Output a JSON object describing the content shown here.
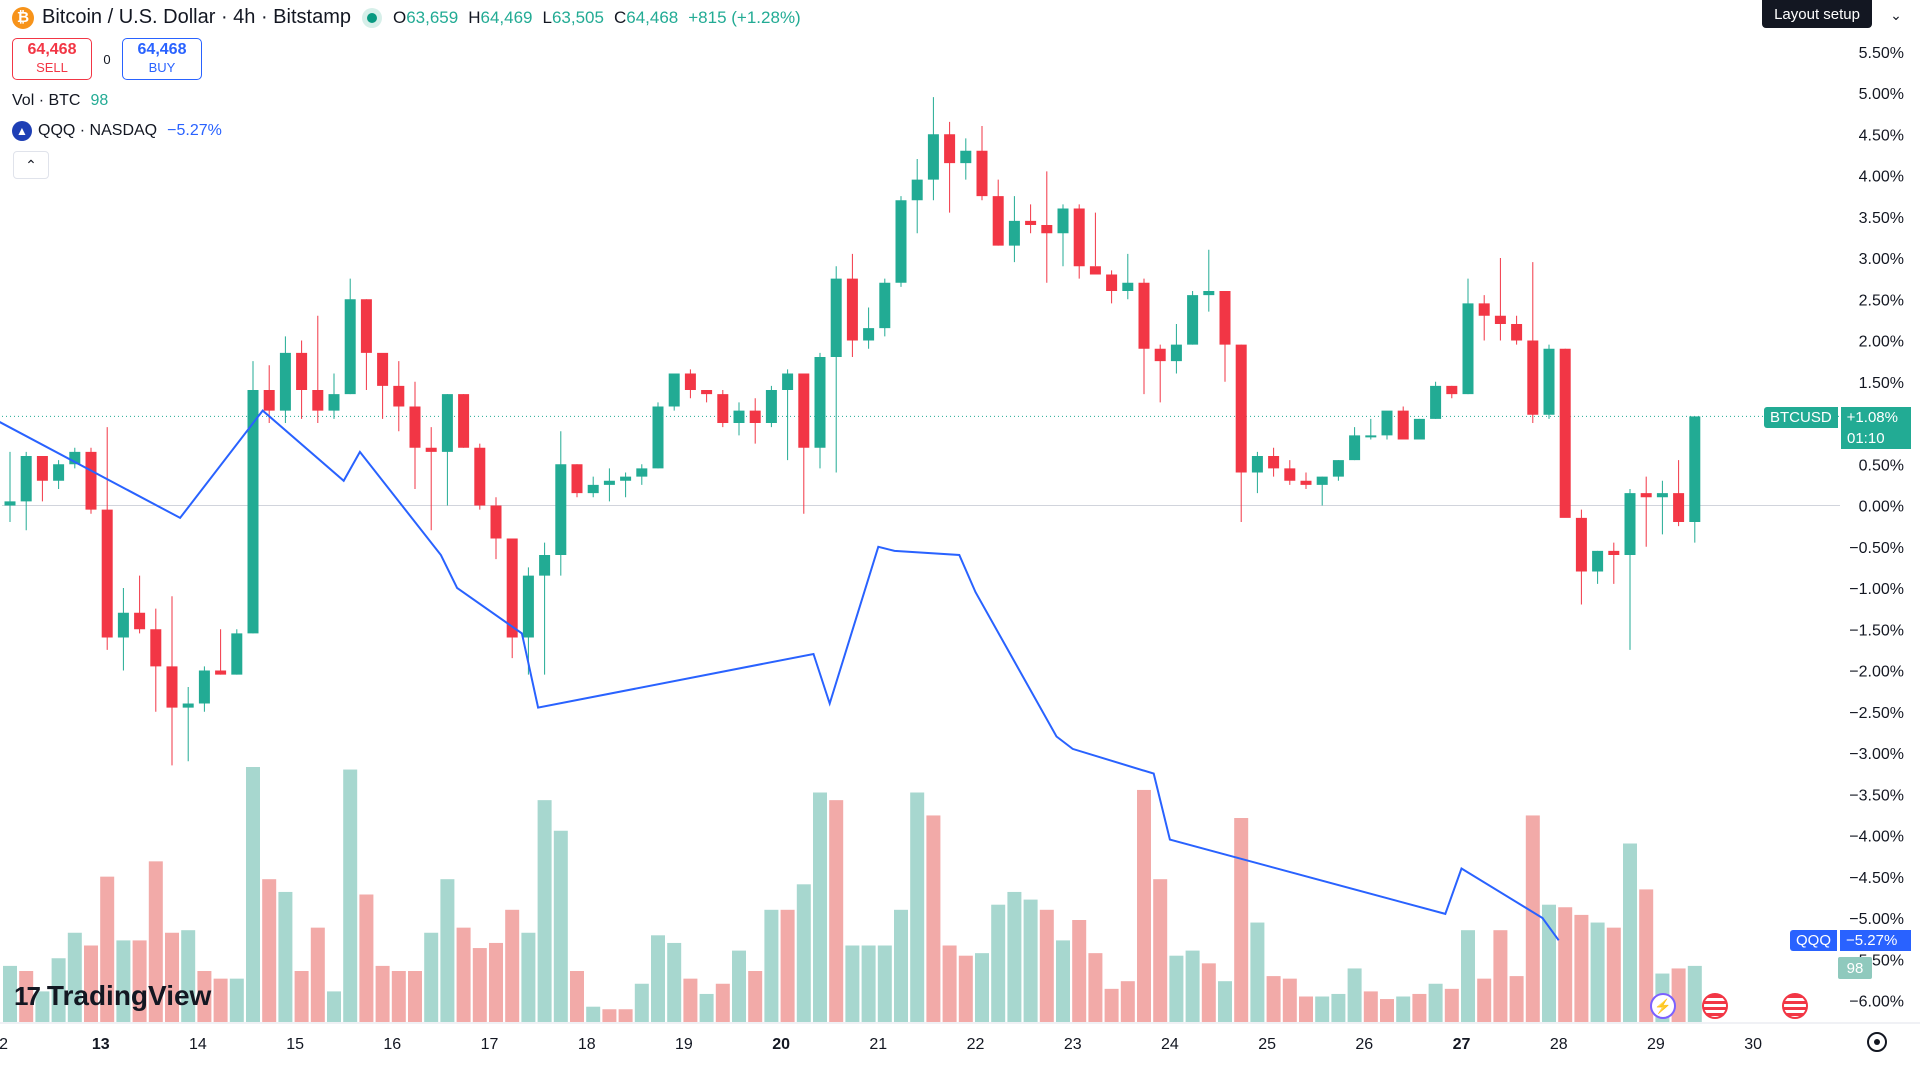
{
  "header": {
    "title": "Bitcoin / U.S. Dollar · 4h · Bitstamp",
    "ohlc": {
      "o_label": "O",
      "o": "63,659",
      "h_label": "H",
      "h": "64,469",
      "l_label": "L",
      "l": "63,505",
      "c_label": "C",
      "c": "64,468",
      "change": "+815 (+1.28%)"
    }
  },
  "trade": {
    "sell_price": "64,468",
    "sell_label": "SELL",
    "spread": "0",
    "buy_price": "64,468",
    "buy_label": "BUY"
  },
  "legend": {
    "vol_label": "Vol · BTC",
    "vol_value": "98",
    "compare_label": "QQQ · NASDAQ",
    "compare_value": "−5.27%"
  },
  "toolbar": {
    "layout_label": "Layout setup"
  },
  "tags": {
    "btc_label": "BTCUSD",
    "btc_value": "+1.08%",
    "btc_timer": "01:10",
    "qqq_label": "QQQ",
    "qqq_value": "−5.27%",
    "vol_value": "98"
  },
  "branding": {
    "name": "TradingView"
  },
  "colors": {
    "up": "#22ab94",
    "down": "#f23645",
    "compare": "#2962ff",
    "vol_up": "#a7d7cf",
    "vol_down": "#f2aaa8"
  },
  "chart_data": {
    "type": "candlestick",
    "timeframe": "4h",
    "y_axis_labels": [
      "5.50%",
      "5.00%",
      "4.50%",
      "4.00%",
      "3.50%",
      "3.00%",
      "2.50%",
      "2.00%",
      "1.50%",
      "1.00%",
      "0.50%",
      "0.00%",
      "−0.50%",
      "−1.00%",
      "−1.50%",
      "−2.00%",
      "−2.50%",
      "−3.00%",
      "−3.50%",
      "−4.00%",
      "−4.50%",
      "−5.00%",
      "−5.50%",
      "−6.00%"
    ],
    "y_range": [
      -6.3,
      5.8
    ],
    "x_labels": [
      {
        "label": "2",
        "bold": false,
        "index": -0.4
      },
      {
        "label": "13",
        "bold": true,
        "index": 5.6
      },
      {
        "label": "14",
        "bold": false,
        "index": 11.6
      },
      {
        "label": "15",
        "bold": false,
        "index": 17.6
      },
      {
        "label": "16",
        "bold": false,
        "index": 23.6
      },
      {
        "label": "17",
        "bold": false,
        "index": 29.6
      },
      {
        "label": "18",
        "bold": false,
        "index": 35.6
      },
      {
        "label": "19",
        "bold": false,
        "index": 41.6
      },
      {
        "label": "20",
        "bold": true,
        "index": 47.6
      },
      {
        "label": "21",
        "bold": false,
        "index": 53.6
      },
      {
        "label": "22",
        "bold": false,
        "index": 59.6
      },
      {
        "label": "23",
        "bold": false,
        "index": 65.6
      },
      {
        "label": "24",
        "bold": false,
        "index": 71.6
      },
      {
        "label": "25",
        "bold": false,
        "index": 77.6
      },
      {
        "label": "26",
        "bold": false,
        "index": 83.6
      },
      {
        "label": "27",
        "bold": true,
        "index": 89.6
      },
      {
        "label": "28",
        "bold": false,
        "index": 95.6
      },
      {
        "label": "29",
        "bold": false,
        "index": 101.6
      },
      {
        "label": "30",
        "bold": false,
        "index": 107.6
      }
    ],
    "btc_candles": [
      [
        0.0,
        0.65,
        -0.2,
        0.05
      ],
      [
        0.05,
        0.65,
        -0.3,
        0.6
      ],
      [
        0.6,
        0.6,
        0.05,
        0.3
      ],
      [
        0.3,
        0.55,
        0.2,
        0.5
      ],
      [
        0.5,
        0.7,
        0.45,
        0.65
      ],
      [
        0.65,
        0.7,
        -0.1,
        -0.05
      ],
      [
        -0.05,
        0.95,
        -1.75,
        -1.6
      ],
      [
        -1.6,
        -1.0,
        -2.0,
        -1.3
      ],
      [
        -1.3,
        -0.85,
        -1.55,
        -1.5
      ],
      [
        -1.5,
        -1.25,
        -2.5,
        -1.95
      ],
      [
        -1.95,
        -1.1,
        -3.15,
        -2.45
      ],
      [
        -2.45,
        -2.2,
        -3.1,
        -2.4
      ],
      [
        -2.4,
        -1.95,
        -2.5,
        -2.0
      ],
      [
        -2.0,
        -1.5,
        -2.05,
        -2.05
      ],
      [
        -2.05,
        -1.5,
        -2.05,
        -1.55
      ],
      [
        -1.55,
        1.75,
        -1.55,
        1.4
      ],
      [
        1.4,
        1.7,
        1.0,
        1.15
      ],
      [
        1.15,
        2.05,
        1.0,
        1.85
      ],
      [
        1.85,
        2.0,
        1.05,
        1.4
      ],
      [
        1.4,
        2.3,
        1.0,
        1.15
      ],
      [
        1.15,
        1.6,
        1.05,
        1.35
      ],
      [
        1.35,
        2.75,
        1.35,
        2.5
      ],
      [
        2.5,
        2.5,
        1.4,
        1.85
      ],
      [
        1.85,
        1.75,
        1.05,
        1.45
      ],
      [
        1.45,
        1.75,
        0.9,
        1.2
      ],
      [
        1.2,
        1.5,
        0.2,
        0.7
      ],
      [
        0.7,
        0.95,
        -0.3,
        0.65
      ],
      [
        0.65,
        1.35,
        0.0,
        1.35
      ],
      [
        1.35,
        1.35,
        0.7,
        0.7
      ],
      [
        0.7,
        0.75,
        -0.05,
        0.0
      ],
      [
        0.0,
        0.1,
        -0.65,
        -0.4
      ],
      [
        -0.4,
        -0.4,
        -1.85,
        -1.6
      ],
      [
        -1.6,
        -0.75,
        -2.05,
        -0.85
      ],
      [
        -0.85,
        -0.45,
        -2.05,
        -0.6
      ],
      [
        -0.6,
        0.9,
        -0.85,
        0.5
      ],
      [
        0.5,
        0.5,
        0.1,
        0.15
      ],
      [
        0.15,
        0.35,
        0.1,
        0.25
      ],
      [
        0.25,
        0.45,
        0.05,
        0.3
      ],
      [
        0.3,
        0.4,
        0.1,
        0.35
      ],
      [
        0.35,
        0.5,
        0.25,
        0.45
      ],
      [
        0.45,
        1.25,
        0.45,
        1.2
      ],
      [
        1.2,
        1.6,
        1.15,
        1.6
      ],
      [
        1.6,
        1.65,
        1.3,
        1.4
      ],
      [
        1.4,
        1.4,
        1.25,
        1.35
      ],
      [
        1.35,
        1.4,
        0.95,
        1.0
      ],
      [
        1.0,
        1.25,
        0.85,
        1.15
      ],
      [
        1.15,
        1.3,
        0.75,
        1.0
      ],
      [
        1.0,
        1.45,
        0.95,
        1.4
      ],
      [
        1.4,
        1.65,
        0.55,
        1.6
      ],
      [
        1.6,
        1.6,
        -0.1,
        0.7
      ],
      [
        0.7,
        1.85,
        0.45,
        1.8
      ],
      [
        1.8,
        2.9,
        0.4,
        2.75
      ],
      [
        2.75,
        3.05,
        1.8,
        2.0
      ],
      [
        2.0,
        2.4,
        1.9,
        2.15
      ],
      [
        2.15,
        2.75,
        2.05,
        2.7
      ],
      [
        2.7,
        3.75,
        2.65,
        3.7
      ],
      [
        3.7,
        4.2,
        3.3,
        3.95
      ],
      [
        3.95,
        4.95,
        3.7,
        4.5
      ],
      [
        4.5,
        4.65,
        3.55,
        4.15
      ],
      [
        4.15,
        4.45,
        3.95,
        4.3
      ],
      [
        4.3,
        4.6,
        3.7,
        3.75
      ],
      [
        3.75,
        3.95,
        3.15,
        3.15
      ],
      [
        3.15,
        3.75,
        2.95,
        3.45
      ],
      [
        3.45,
        3.65,
        3.3,
        3.4
      ],
      [
        3.4,
        4.05,
        2.7,
        3.3
      ],
      [
        3.3,
        3.65,
        2.9,
        3.6
      ],
      [
        3.6,
        3.65,
        2.75,
        2.9
      ],
      [
        2.9,
        3.55,
        2.9,
        2.8
      ],
      [
        2.8,
        2.85,
        2.45,
        2.6
      ],
      [
        2.6,
        3.05,
        2.5,
        2.7
      ],
      [
        2.7,
        2.75,
        1.35,
        1.9
      ],
      [
        1.9,
        1.95,
        1.25,
        1.75
      ],
      [
        1.75,
        2.2,
        1.6,
        1.95
      ],
      [
        1.95,
        2.6,
        1.95,
        2.55
      ],
      [
        2.55,
        3.1,
        2.35,
        2.6
      ],
      [
        2.6,
        2.6,
        1.5,
        1.95
      ],
      [
        1.95,
        1.95,
        -0.2,
        0.4
      ],
      [
        0.4,
        0.65,
        0.15,
        0.6
      ],
      [
        0.6,
        0.7,
        0.35,
        0.45
      ],
      [
        0.45,
        0.55,
        0.25,
        0.3
      ],
      [
        0.3,
        0.4,
        0.2,
        0.25
      ],
      [
        0.25,
        0.35,
        0.0,
        0.35
      ],
      [
        0.35,
        0.55,
        0.3,
        0.55
      ],
      [
        0.55,
        0.95,
        0.55,
        0.85
      ],
      [
        0.85,
        1.05,
        0.8,
        0.85
      ],
      [
        0.85,
        1.1,
        0.8,
        1.15
      ],
      [
        1.15,
        1.2,
        0.8,
        0.8
      ],
      [
        0.8,
        1.05,
        0.8,
        1.05
      ],
      [
        1.05,
        1.5,
        1.05,
        1.45
      ],
      [
        1.45,
        1.45,
        1.3,
        1.35
      ],
      [
        1.35,
        2.75,
        1.35,
        2.45
      ],
      [
        2.45,
        2.55,
        2.0,
        2.3
      ],
      [
        2.3,
        3.0,
        2.0,
        2.2
      ],
      [
        2.2,
        2.3,
        1.95,
        2.0
      ],
      [
        2.0,
        2.95,
        1.0,
        1.1
      ],
      [
        1.1,
        1.95,
        1.05,
        1.9
      ],
      [
        1.9,
        1.9,
        -0.1,
        -0.15
      ],
      [
        -0.15,
        -0.05,
        -1.2,
        -0.8
      ],
      [
        -0.8,
        -0.55,
        -0.95,
        -0.55
      ],
      [
        -0.55,
        -0.45,
        -0.95,
        -0.6
      ],
      [
        -0.6,
        0.2,
        -1.75,
        0.15
      ],
      [
        0.15,
        0.35,
        -0.5,
        0.1
      ],
      [
        0.1,
        0.3,
        -0.35,
        0.15
      ],
      [
        0.15,
        0.55,
        -0.25,
        -0.2
      ],
      [
        -0.2,
        1.08,
        -0.45,
        1.08
      ]
    ],
    "btc_volume": [
      [
        0.22,
        "up"
      ],
      [
        0.2,
        "down"
      ],
      [
        0.12,
        "up"
      ],
      [
        0.25,
        "up"
      ],
      [
        0.35,
        "up"
      ],
      [
        0.3,
        "down"
      ],
      [
        0.57,
        "down"
      ],
      [
        0.32,
        "up"
      ],
      [
        0.32,
        "down"
      ],
      [
        0.63,
        "down"
      ],
      [
        0.35,
        "down"
      ],
      [
        0.36,
        "up"
      ],
      [
        0.2,
        "down"
      ],
      [
        0.17,
        "down"
      ],
      [
        0.17,
        "up"
      ],
      [
        1.0,
        "up"
      ],
      [
        0.56,
        "down"
      ],
      [
        0.51,
        "up"
      ],
      [
        0.2,
        "down"
      ],
      [
        0.37,
        "down"
      ],
      [
        0.12,
        "up"
      ],
      [
        0.99,
        "up"
      ],
      [
        0.5,
        "down"
      ],
      [
        0.22,
        "down"
      ],
      [
        0.2,
        "down"
      ],
      [
        0.2,
        "down"
      ],
      [
        0.35,
        "up"
      ],
      [
        0.56,
        "up"
      ],
      [
        0.37,
        "down"
      ],
      [
        0.29,
        "down"
      ],
      [
        0.31,
        "down"
      ],
      [
        0.44,
        "down"
      ],
      [
        0.35,
        "up"
      ],
      [
        0.87,
        "up"
      ],
      [
        0.75,
        "up"
      ],
      [
        0.2,
        "down"
      ],
      [
        0.06,
        "up"
      ],
      [
        0.05,
        "down"
      ],
      [
        0.05,
        "down"
      ],
      [
        0.15,
        "up"
      ],
      [
        0.34,
        "up"
      ],
      [
        0.31,
        "up"
      ],
      [
        0.17,
        "down"
      ],
      [
        0.11,
        "up"
      ],
      [
        0.15,
        "down"
      ],
      [
        0.28,
        "up"
      ],
      [
        0.2,
        "down"
      ],
      [
        0.44,
        "up"
      ],
      [
        0.44,
        "down"
      ],
      [
        0.54,
        "up"
      ],
      [
        0.9,
        "up"
      ],
      [
        0.87,
        "down"
      ],
      [
        0.3,
        "up"
      ],
      [
        0.3,
        "up"
      ],
      [
        0.3,
        "up"
      ],
      [
        0.44,
        "up"
      ],
      [
        0.9,
        "up"
      ],
      [
        0.81,
        "down"
      ],
      [
        0.3,
        "down"
      ],
      [
        0.26,
        "down"
      ],
      [
        0.27,
        "up"
      ],
      [
        0.46,
        "up"
      ],
      [
        0.51,
        "up"
      ],
      [
        0.48,
        "up"
      ],
      [
        0.44,
        "down"
      ],
      [
        0.32,
        "up"
      ],
      [
        0.4,
        "down"
      ],
      [
        0.27,
        "down"
      ],
      [
        0.13,
        "down"
      ],
      [
        0.16,
        "down"
      ],
      [
        0.91,
        "down"
      ],
      [
        0.56,
        "down"
      ],
      [
        0.26,
        "up"
      ],
      [
        0.28,
        "up"
      ],
      [
        0.23,
        "down"
      ],
      [
        0.16,
        "up"
      ],
      [
        0.8,
        "down"
      ],
      [
        0.39,
        "up"
      ],
      [
        0.18,
        "down"
      ],
      [
        0.17,
        "down"
      ],
      [
        0.1,
        "down"
      ],
      [
        0.1,
        "up"
      ],
      [
        0.11,
        "up"
      ],
      [
        0.21,
        "up"
      ],
      [
        0.12,
        "down"
      ],
      [
        0.09,
        "down"
      ],
      [
        0.1,
        "up"
      ],
      [
        0.11,
        "down"
      ],
      [
        0.15,
        "up"
      ],
      [
        0.13,
        "down"
      ],
      [
        0.36,
        "up"
      ],
      [
        0.17,
        "down"
      ],
      [
        0.36,
        "down"
      ],
      [
        0.18,
        "down"
      ],
      [
        0.81,
        "down"
      ],
      [
        0.46,
        "up"
      ],
      [
        0.45,
        "down"
      ],
      [
        0.42,
        "down"
      ],
      [
        0.39,
        "up"
      ],
      [
        0.37,
        "down"
      ],
      [
        0.7,
        "up"
      ],
      [
        0.52,
        "down"
      ],
      [
        0.19,
        "up"
      ],
      [
        0.21,
        "down"
      ],
      [
        0.22,
        "up"
      ]
    ],
    "qqq_line": [
      [
        -1.0,
        1.05
      ],
      [
        10.5,
        -0.15
      ],
      [
        15.6,
        1.15
      ],
      [
        20.6,
        0.3
      ],
      [
        21.6,
        0.65
      ],
      [
        26.6,
        -0.6
      ],
      [
        27.6,
        -1.0
      ],
      [
        31.6,
        -1.55
      ],
      [
        32.6,
        -2.45
      ],
      [
        49.6,
        -1.8
      ],
      [
        50.6,
        -2.4
      ],
      [
        53.6,
        -0.5
      ],
      [
        54.6,
        -0.55
      ],
      [
        58.6,
        -0.6
      ],
      [
        59.6,
        -1.05
      ],
      [
        64.6,
        -2.8
      ],
      [
        65.6,
        -2.95
      ],
      [
        70.6,
        -3.25
      ],
      [
        71.6,
        -4.05
      ],
      [
        88.6,
        -4.95
      ],
      [
        89.6,
        -4.4
      ],
      [
        94.6,
        -5.0
      ],
      [
        95.6,
        -5.27
      ]
    ]
  }
}
